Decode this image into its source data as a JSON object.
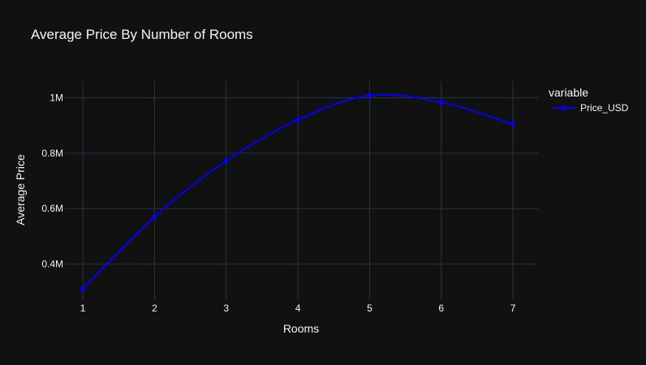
{
  "chart_data": {
    "type": "line",
    "title": "Average Price By Number of Rooms",
    "xlabel": "Rooms",
    "ylabel": "Average Price",
    "x": [
      1,
      2,
      3,
      4,
      5,
      6,
      7
    ],
    "xlim": [
      0.75,
      7.35
    ],
    "ylim": [
      0.27,
      1.06
    ],
    "y_ticks": [
      0.4,
      0.6,
      0.8,
      1.0
    ],
    "y_tick_labels": [
      "0.4M",
      "0.6M",
      "0.8M",
      "1M"
    ],
    "x_tick_labels": [
      "1",
      "2",
      "3",
      "4",
      "5",
      "6",
      "7"
    ],
    "grid": true,
    "legend_title": "variable",
    "legend_position": "top-right",
    "line_shape": "spline",
    "series": [
      {
        "name": "Price_USD",
        "color": "#0000ff",
        "values": [
          0.31,
          0.57,
          0.772,
          0.92,
          1.008,
          0.984,
          0.905
        ]
      }
    ]
  },
  "colors": {
    "background": "#111111",
    "grid": "#283442",
    "text": "#f2f5fa"
  }
}
